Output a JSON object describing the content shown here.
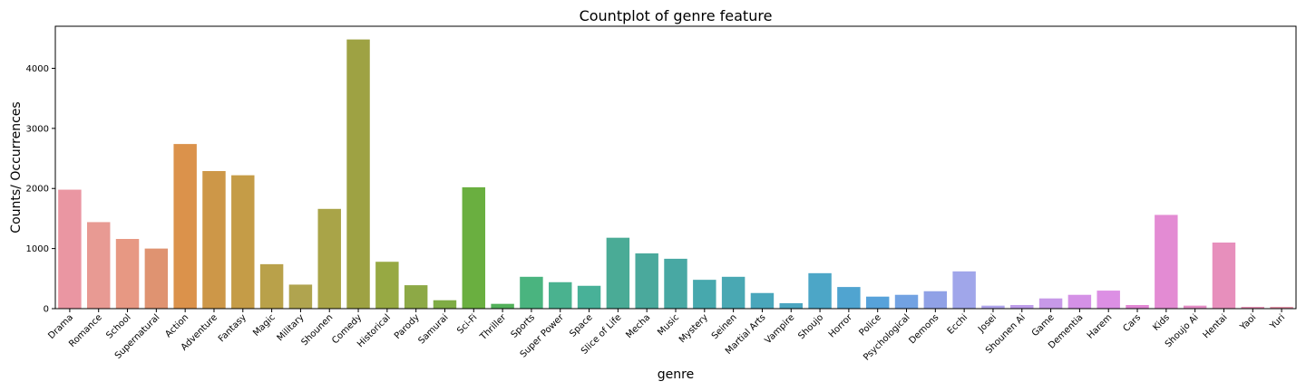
{
  "chart_data": {
    "type": "bar",
    "title": "Countplot of genre feature",
    "xlabel": "genre",
    "ylabel": "Counts/ Occurrences",
    "ylim": [
      0,
      4700
    ],
    "yticks": [
      0,
      1000,
      2000,
      3000,
      4000
    ],
    "categories": [
      "Drama",
      "Romance",
      "School",
      "Supernatural",
      "Action",
      "Adventure",
      "Fantasy",
      "Magic",
      "Military",
      "Shounen",
      "Comedy",
      "Historical",
      "Parody",
      "Samurai",
      "Sci-Fi",
      "Thriller",
      "Sports",
      "Super Power",
      "Space",
      "Slice of Life",
      "Mecha",
      "Music",
      "Mystery",
      "Seinen",
      "Martial Arts",
      "Vampire",
      "Shoujo",
      "Horror",
      "Police",
      "Psychological",
      "Demons",
      "Ecchi",
      "Josei",
      "Shounen Ai",
      "Game",
      "Dementia",
      "Harem",
      "Cars",
      "Kids",
      "Shoujo Ai",
      "Hentai",
      "Yaoi",
      "Yuri"
    ],
    "values": [
      1980,
      1440,
      1160,
      1000,
      2740,
      2290,
      2220,
      740,
      400,
      1660,
      4480,
      780,
      390,
      140,
      2020,
      80,
      530,
      440,
      380,
      1180,
      920,
      830,
      480,
      530,
      260,
      90,
      590,
      360,
      200,
      230,
      290,
      620,
      50,
      60,
      170,
      230,
      300,
      60,
      1560,
      50,
      1100,
      30,
      30
    ],
    "colors": [
      "#ea96a2",
      "#e89a93",
      "#e79883",
      "#df9371",
      "#db924b",
      "#cd9748",
      "#c59c47",
      "#b9a14a",
      "#b0a44f",
      "#a9a448",
      "#9ea243",
      "#97a943",
      "#8da946",
      "#7fac45",
      "#6aaf40",
      "#52b15a",
      "#4ab47f",
      "#4ab28f",
      "#48b198",
      "#4aab96",
      "#4aa99c",
      "#48a8a3",
      "#47a8ad",
      "#49a8b3",
      "#49a6bb",
      "#4aa5c0",
      "#4ca6c7",
      "#50a4d0",
      "#57a2da",
      "#72a2e2",
      "#90a1e6",
      "#a0a6ea",
      "#afa4ec",
      "#bd9dea",
      "#c799e8",
      "#d491e6",
      "#dc8fe4",
      "#e186d4",
      "#e38bd3",
      "#e58dc6",
      "#e78fbc",
      "#e592b4",
      "#e595aa"
    ],
    "grid": false,
    "legend": "none"
  }
}
